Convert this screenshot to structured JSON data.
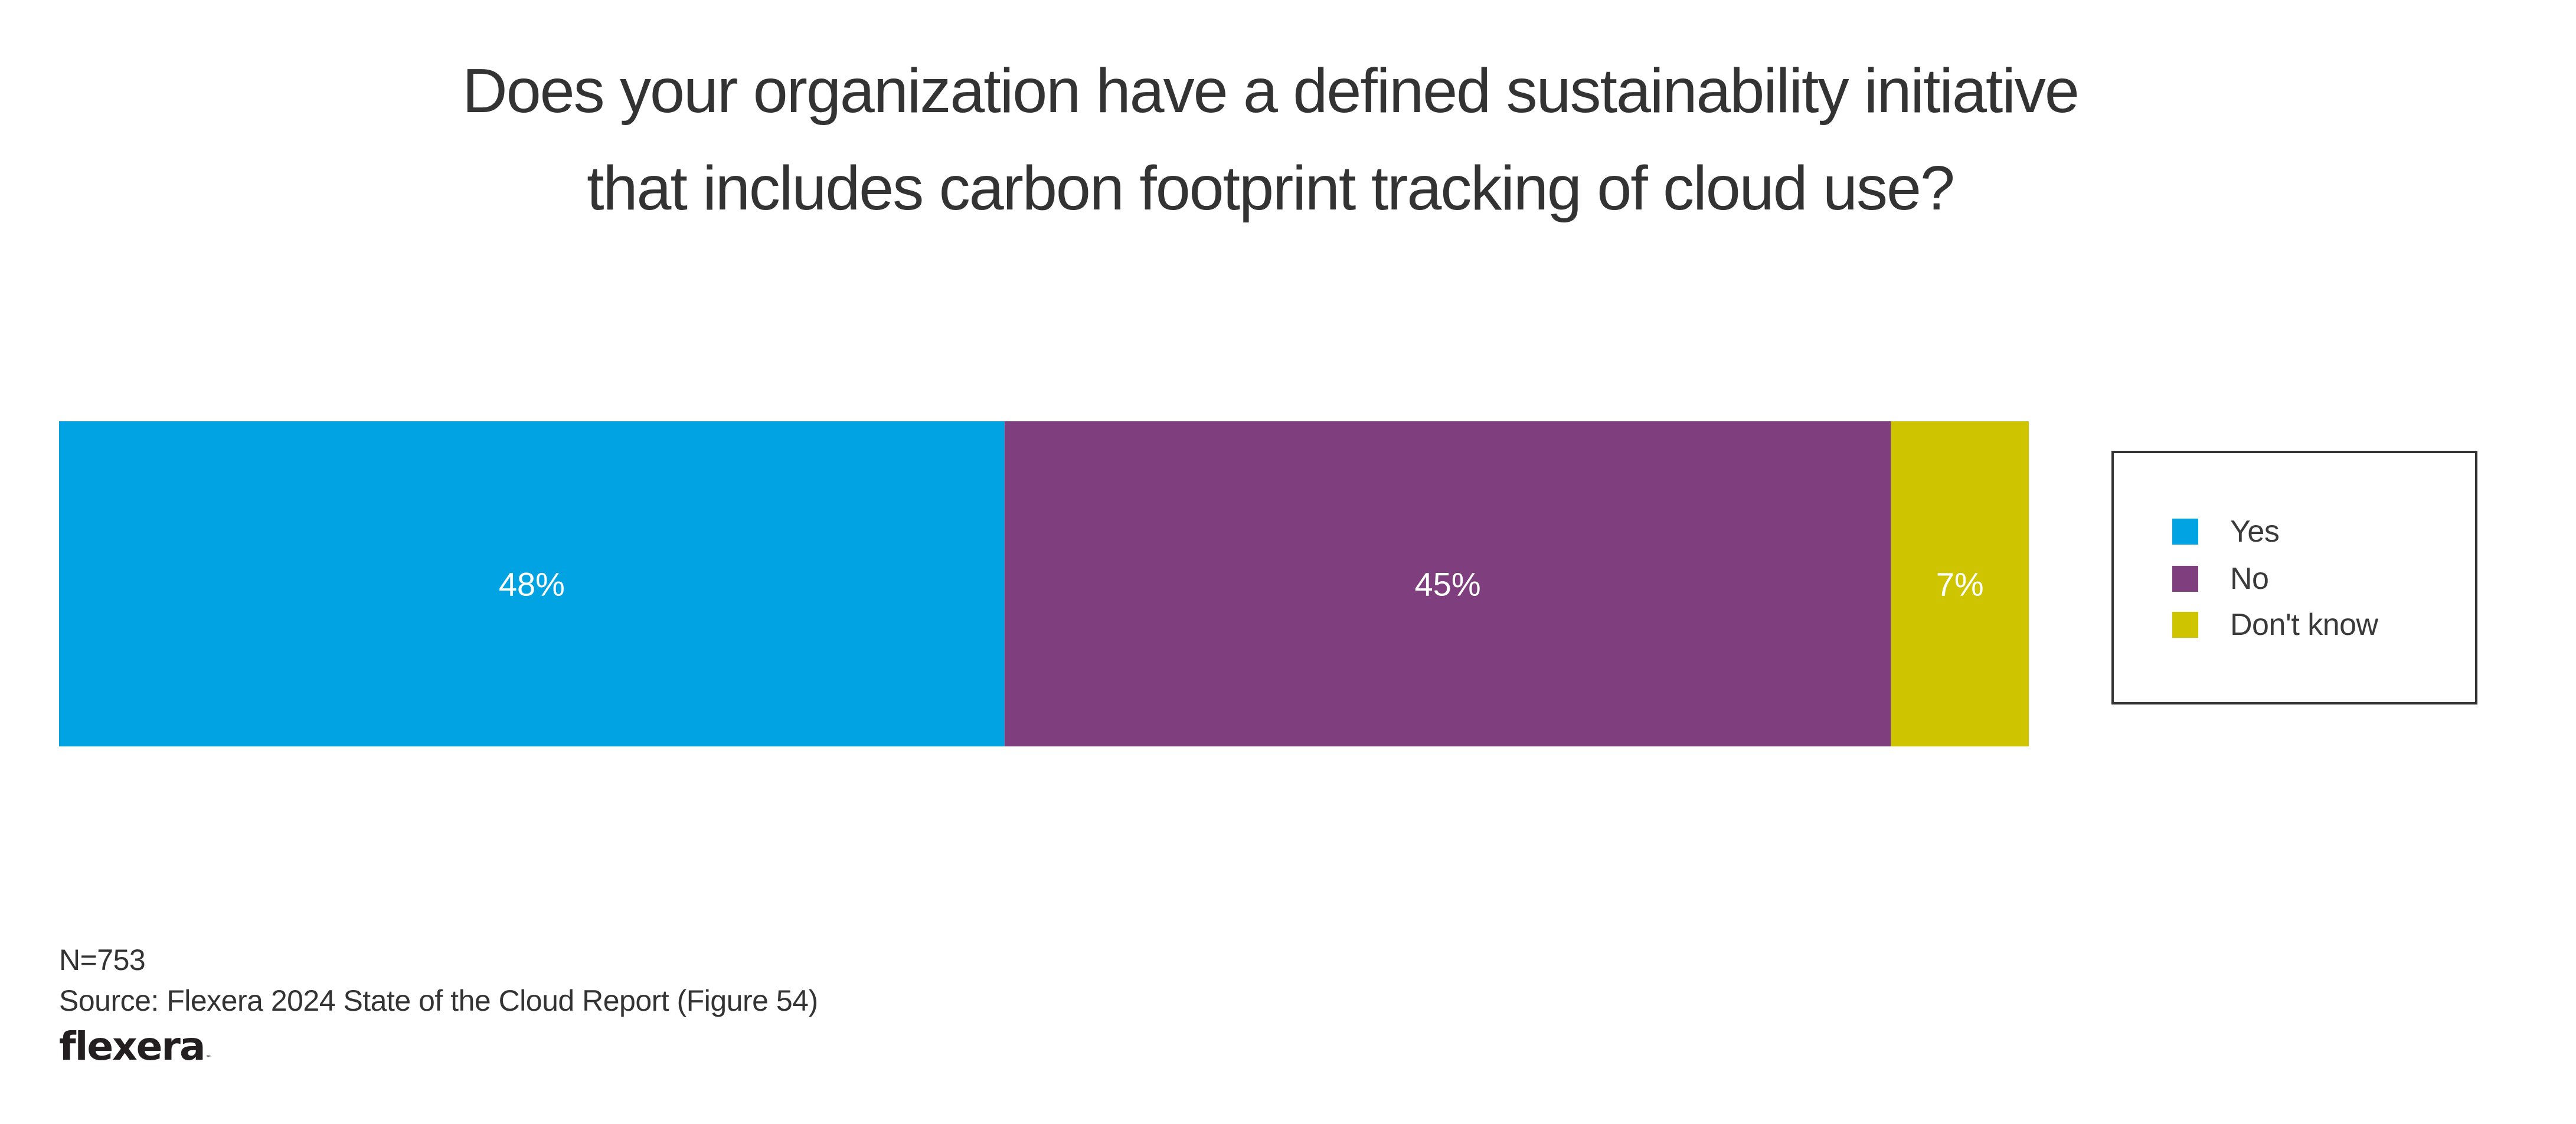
{
  "chart_data": {
    "type": "bar",
    "orientation": "horizontal",
    "stacked": true,
    "title": "Does your organization have a defined sustainability initiative that includes carbon footprint tracking of cloud use?",
    "title_lines": [
      "Does your organization have a defined sustainability initiative",
      "that includes carbon footprint tracking of cloud use?"
    ],
    "categories": [
      ""
    ],
    "series": [
      {
        "name": "Yes",
        "values": [
          48
        ],
        "label": "48%",
        "color": "#02a3e2"
      },
      {
        "name": "No",
        "values": [
          45
        ],
        "label": "45%",
        "color": "#7f3e7d"
      },
      {
        "name": "Don't know",
        "values": [
          7
        ],
        "label": "7%",
        "color": "#cec500"
      }
    ],
    "unit": "%",
    "xlim": [
      0,
      100
    ],
    "xlabel": "",
    "ylabel": "",
    "grid": false,
    "legend_position": "right"
  },
  "footer": {
    "sample_size": "N=753",
    "source": "Source: Flexera 2024 State of the Cloud Report (Figure 54)"
  },
  "logo": {
    "text": "flexera",
    "trademark": "™"
  }
}
